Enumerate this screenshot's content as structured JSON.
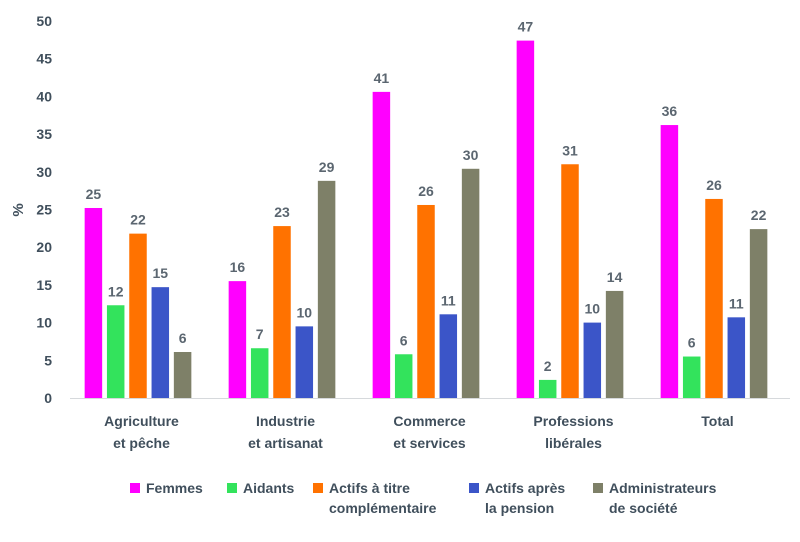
{
  "chart_data": {
    "type": "bar",
    "ylabel": "%",
    "ylim": [
      0,
      50
    ],
    "yticks": [
      "0",
      "5",
      "10",
      "15",
      "20",
      "25",
      "30",
      "35",
      "40",
      "45",
      "50"
    ],
    "categories": [
      [
        "Agriculture",
        "et pêche"
      ],
      [
        "Industrie",
        "et artisanat"
      ],
      [
        "Commerce",
        "et services"
      ],
      [
        "Professions",
        "libérales"
      ],
      [
        "Total"
      ]
    ],
    "series": [
      {
        "name": [
          "Femmes"
        ],
        "color": "#ff00ff",
        "values": [
          25.2,
          15.5,
          40.6,
          47.4,
          36.2
        ],
        "labels": [
          "25",
          "16",
          "41",
          "47",
          "36"
        ]
      },
      {
        "name": [
          "Aidants"
        ],
        "color": "#33e35c",
        "values": [
          12.3,
          6.6,
          5.8,
          2.4,
          5.5
        ],
        "labels": [
          "12",
          "7",
          "6",
          "2",
          "6"
        ]
      },
      {
        "name": [
          "Actifs à titre",
          "complémentaire"
        ],
        "color": "#ff7200",
        "values": [
          21.8,
          22.8,
          25.6,
          31.0,
          26.4
        ],
        "labels": [
          "22",
          "23",
          "26",
          "31",
          "26"
        ]
      },
      {
        "name": [
          "Actifs après",
          "la pension"
        ],
        "color": "#3b55c8",
        "values": [
          14.7,
          9.5,
          11.1,
          10.0,
          10.7
        ],
        "labels": [
          "15",
          "10",
          "11",
          "10",
          "11"
        ]
      },
      {
        "name": [
          "Administrateurs",
          "de société"
        ],
        "color": "#7e8068",
        "values": [
          6.1,
          28.8,
          30.4,
          14.2,
          22.4
        ],
        "labels": [
          "6",
          "29",
          "30",
          "14",
          "22"
        ]
      }
    ],
    "legend_position": "bottom",
    "grid": false
  }
}
